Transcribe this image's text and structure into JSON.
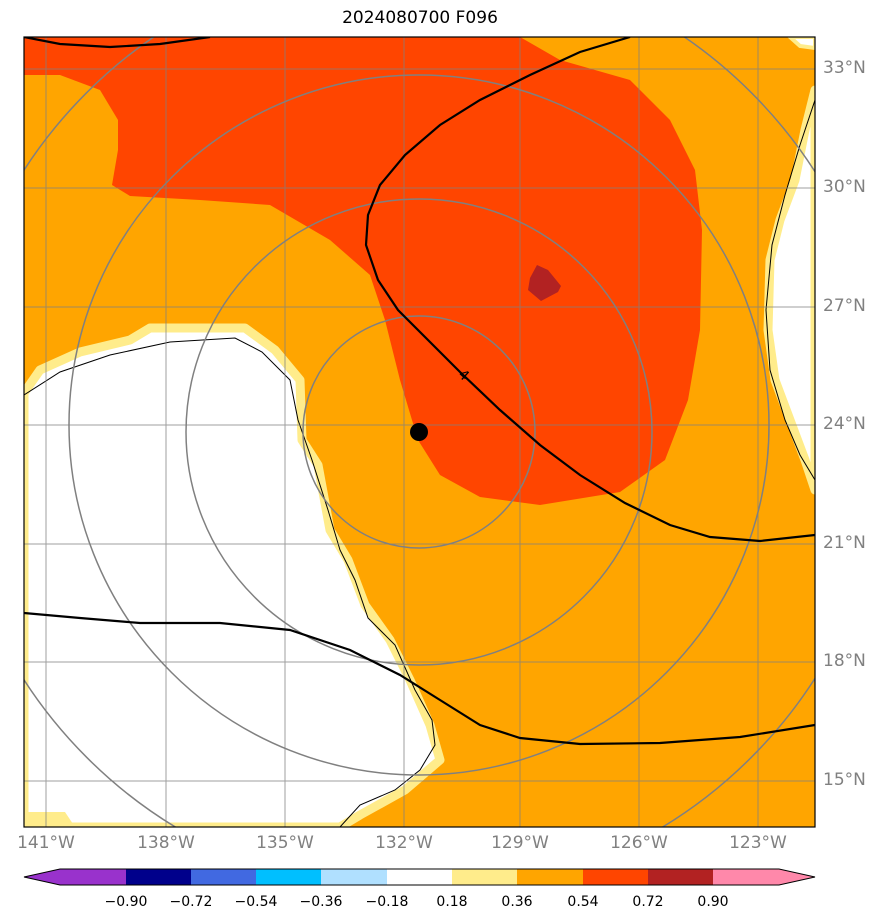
{
  "title": "2024080700 F096",
  "map": {
    "lat_ticks": [
      "33°N",
      "30°N",
      "27°N",
      "24°N",
      "21°N",
      "18°N",
      "15°N"
    ],
    "lon_ticks": [
      "141°W",
      "138°W",
      "135°W",
      "132°W",
      "129°W",
      "126°W",
      "123°W"
    ],
    "contour_label": "4",
    "center_marker": {
      "lat": 23.9,
      "lon": "131.6°W"
    },
    "grid": true
  },
  "colorbar": {
    "ticks": [
      "−0.90",
      "−0.72",
      "−0.54",
      "−0.36",
      "−0.18",
      "0.18",
      "0.36",
      "0.54",
      "0.72",
      "0.90"
    ],
    "colors": [
      "#9932cc",
      "#00008b",
      "#4169e1",
      "#00bfff",
      "#b0e0ff",
      "#ffffff",
      "#ffec8b",
      "#ffa500",
      "#ff4500",
      "#b22222",
      "#ff88aa"
    ]
  }
}
